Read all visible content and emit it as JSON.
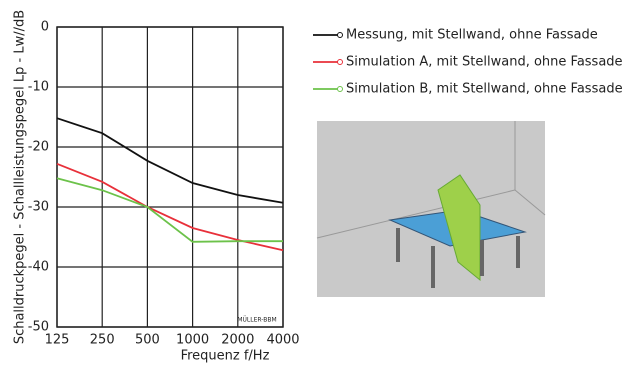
{
  "chart_data": {
    "type": "line",
    "y_label": "Schalldruckpegel - Schallleistungspegel Lp - Lw//dB",
    "x_label": "Frequenz f/Hz",
    "watermark": "MÜLLER-BBM",
    "x": [
      125,
      250,
      500,
      1000,
      2000,
      4000
    ],
    "xlim": [
      125,
      4000
    ],
    "xticks": [
      125,
      250,
      500,
      1000,
      2000,
      4000
    ],
    "xscale": "log",
    "ylim": [
      -50,
      0
    ],
    "yticks": [
      0,
      -10,
      -20,
      -30,
      -40,
      -50
    ],
    "grid": true,
    "legend": "right",
    "series": [
      {
        "name": "Messung, mit Stellwand, ohne Fassade",
        "color": "#111111",
        "values": [
          -15.2,
          -17.7,
          -22.3,
          -26,
          -28,
          -29.3
        ]
      },
      {
        "name": "Simulation A, mit Stellwand, ohne Fassade",
        "color": "#e8303a",
        "values": [
          -22.8,
          -25.8,
          -30,
          -33.5,
          -35.5,
          -37.2
        ]
      },
      {
        "name": "Simulation B, mit Stellwand, ohne Fassade",
        "color": "#6cc24a",
        "values": [
          -25.2,
          -27.2,
          -30,
          -35.8,
          -35.7,
          -35.7
        ]
      }
    ]
  }
}
